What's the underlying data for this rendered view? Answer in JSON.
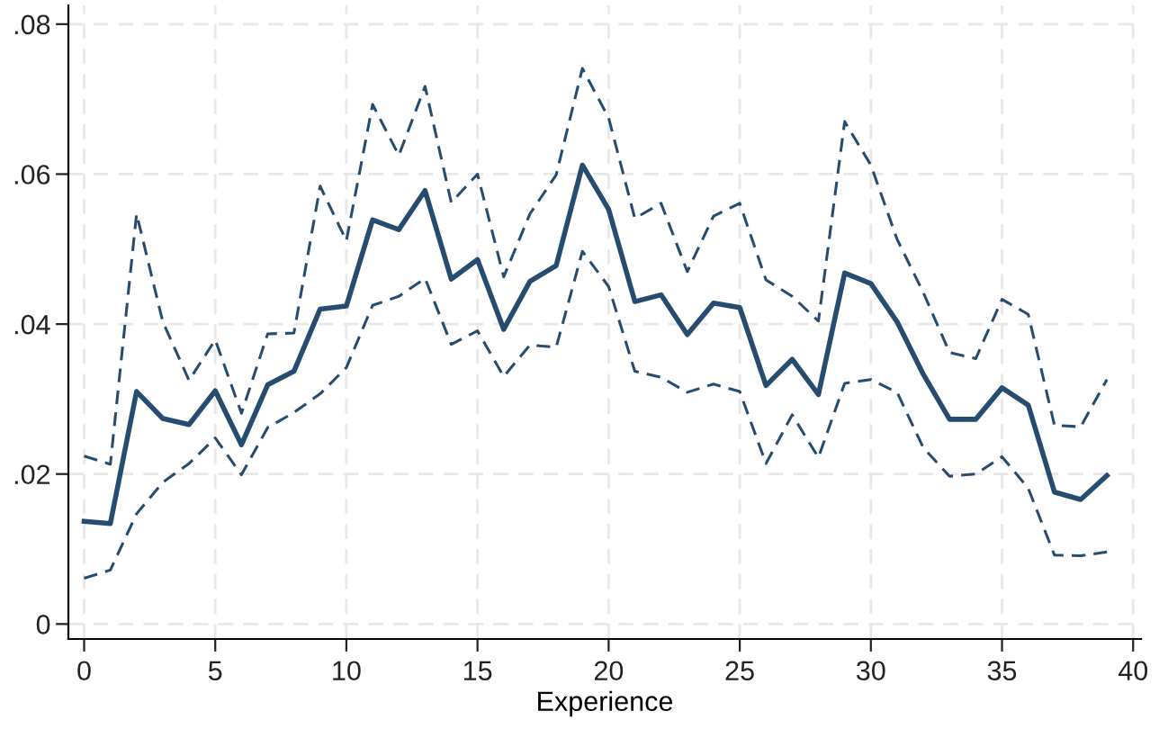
{
  "chart_data": {
    "type": "line",
    "xlabel": "Experience",
    "xlim": [
      -0.6,
      40.3
    ],
    "ylim": [
      -0.002,
      0.0825
    ],
    "xticks": [
      0,
      5,
      10,
      15,
      20,
      25,
      30,
      35,
      40
    ],
    "yticks": [
      {
        "value": 0,
        "label": "0"
      },
      {
        "value": 0.02,
        "label": ".02"
      },
      {
        "value": 0.04,
        "label": ".04"
      },
      {
        "value": 0.06,
        "label": ".06"
      },
      {
        "value": 0.08,
        "label": ".08"
      }
    ],
    "grid": true,
    "marker": "none",
    "x": [
      0,
      1,
      2,
      3,
      4,
      5,
      6,
      7,
      8,
      9,
      10,
      11,
      12,
      13,
      14,
      15,
      16,
      17,
      18,
      19,
      20,
      21,
      22,
      23,
      24,
      25,
      26,
      27,
      28,
      29,
      30,
      31,
      32,
      33,
      34,
      35,
      36,
      37,
      38,
      39
    ],
    "series": [
      {
        "color": "#264d70",
        "line_style": "solid",
        "values": [
          0.0137,
          0.0134,
          0.031,
          0.0274,
          0.0266,
          0.0311,
          0.0239,
          0.0319,
          0.0337,
          0.042,
          0.0424,
          0.0539,
          0.0526,
          0.0578,
          0.046,
          0.0486,
          0.0393,
          0.0457,
          0.0478,
          0.0612,
          0.0553,
          0.043,
          0.0439,
          0.0386,
          0.0428,
          0.0422,
          0.0318,
          0.0353,
          0.0306,
          0.0468,
          0.0454,
          0.0403,
          0.0333,
          0.0273,
          0.0273,
          0.0315,
          0.0292,
          0.0176,
          0.0166,
          0.0198
        ]
      },
      {
        "color": "#264d70",
        "line_style": "dashed",
        "values": [
          0.0224,
          0.0213,
          0.0547,
          0.0403,
          0.0325,
          0.0379,
          0.0281,
          0.0387,
          0.0388,
          0.0584,
          0.0511,
          0.0693,
          0.0625,
          0.0717,
          0.0562,
          0.06,
          0.0463,
          0.0547,
          0.0599,
          0.0741,
          0.0675,
          0.0541,
          0.0561,
          0.047,
          0.0544,
          0.0561,
          0.0459,
          0.0437,
          0.0404,
          0.067,
          0.0612,
          0.0513,
          0.0442,
          0.0362,
          0.0354,
          0.0433,
          0.0413,
          0.0265,
          0.0263,
          0.0326
        ]
      },
      {
        "color": "#264d70",
        "line_style": "dashed",
        "values": [
          0.0061,
          0.0072,
          0.0147,
          0.0189,
          0.0214,
          0.0248,
          0.0199,
          0.0262,
          0.0282,
          0.0307,
          0.0342,
          0.0425,
          0.0437,
          0.0461,
          0.0373,
          0.0391,
          0.033,
          0.0372,
          0.0369,
          0.0497,
          0.045,
          0.0337,
          0.0329,
          0.0309,
          0.032,
          0.031,
          0.0214,
          0.0279,
          0.0222,
          0.0321,
          0.0326,
          0.0309,
          0.0235,
          0.0197,
          0.02,
          0.0223,
          0.0181,
          0.0092,
          0.0091,
          0.0096
        ]
      }
    ]
  }
}
